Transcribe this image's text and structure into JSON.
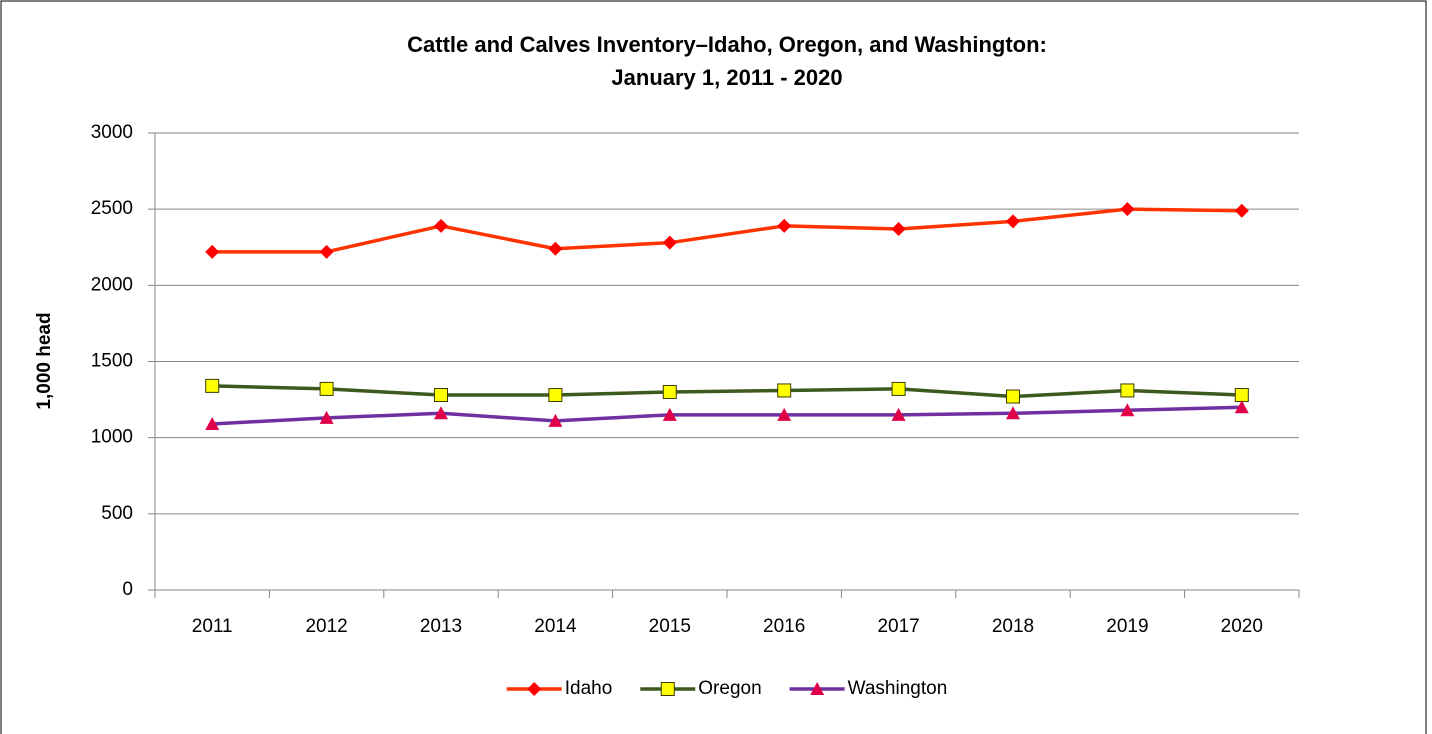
{
  "chart_data": {
    "type": "line",
    "title": [
      "Cattle and Calves Inventory–Idaho, Oregon, and Washington:",
      "January 1, 2011 - 2020"
    ],
    "y_label": "1,000 head",
    "categories": [
      "2011",
      "2012",
      "2013",
      "2014",
      "2015",
      "2016",
      "2017",
      "2018",
      "2019",
      "2020"
    ],
    "series": [
      {
        "name": "Idaho",
        "color": "#ff3300",
        "marker": "diamond",
        "marker_color": "#ff0000",
        "values": [
          2220,
          2220,
          2390,
          2240,
          2280,
          2390,
          2370,
          2420,
          2500,
          2490
        ]
      },
      {
        "name": "Oregon",
        "color": "#3c5a1e",
        "marker": "square",
        "marker_color": "#ffff00",
        "values": [
          1340,
          1320,
          1280,
          1280,
          1300,
          1310,
          1320,
          1270,
          1310,
          1280
        ]
      },
      {
        "name": "Washington",
        "color": "#7030a0",
        "marker": "triangle",
        "marker_color": "#e0004a",
        "values": [
          1090,
          1130,
          1160,
          1110,
          1150,
          1150,
          1150,
          1160,
          1180,
          1200
        ]
      }
    ],
    "ylim": [
      0,
      3000
    ],
    "yticks": [
      0,
      500,
      1000,
      1500,
      2000,
      2500,
      3000
    ],
    "grid": true,
    "legend": "bottom"
  }
}
